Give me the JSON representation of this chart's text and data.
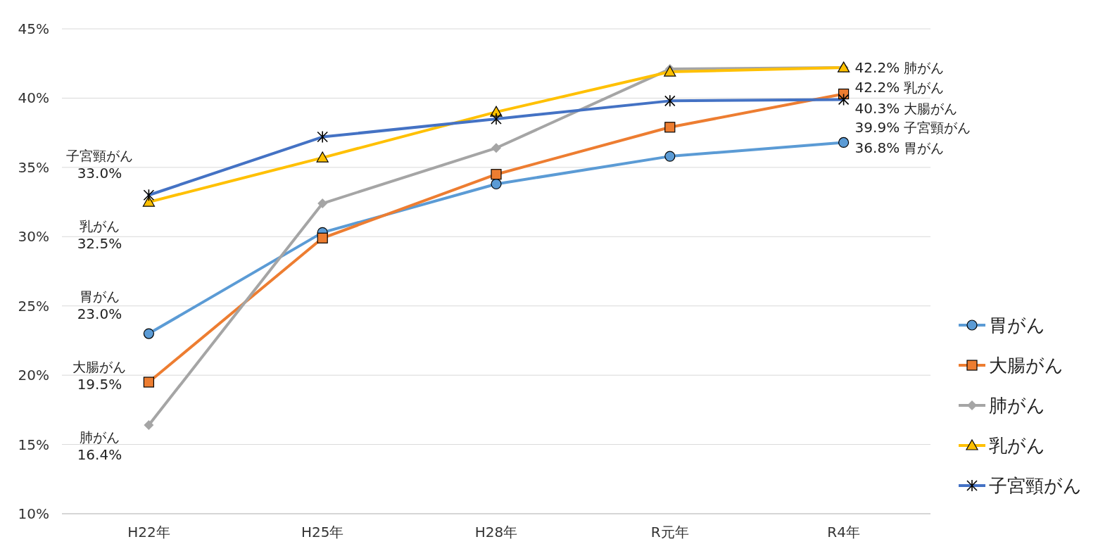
{
  "chart_data": {
    "type": "line",
    "categories": [
      "H22年",
      "H25年",
      "H28年",
      "R元年",
      "R4年"
    ],
    "ylim": [
      10,
      45
    ],
    "yticks": [
      {
        "value": 10,
        "label": "10%"
      },
      {
        "value": 15,
        "label": "15%"
      },
      {
        "value": 20,
        "label": "20%"
      },
      {
        "value": 25,
        "label": "25%"
      },
      {
        "value": 30,
        "label": "30%"
      },
      {
        "value": 35,
        "label": "35%"
      },
      {
        "value": 40,
        "label": "40%"
      },
      {
        "value": 45,
        "label": "45%"
      }
    ],
    "grid": "y",
    "legend": "right",
    "series": [
      {
        "name": "胃がん",
        "color": "#5b9bd5",
        "marker": "circle",
        "values": [
          23.0,
          30.3,
          33.8,
          35.8,
          36.8
        ],
        "value_labels": [
          "23.0%",
          null,
          null,
          null,
          "36.8%"
        ]
      },
      {
        "name": "大腸がん",
        "color": "#ed7d31",
        "marker": "square",
        "values": [
          19.5,
          29.9,
          34.5,
          37.9,
          40.3
        ],
        "value_labels": [
          "19.5%",
          null,
          null,
          null,
          "40.3%"
        ]
      },
      {
        "name": "肺がん",
        "color": "#a5a5a5",
        "marker": "diamond",
        "values": [
          16.4,
          32.4,
          36.4,
          42.1,
          42.2
        ],
        "value_labels": [
          "16.4%",
          null,
          null,
          null,
          "42.2%"
        ]
      },
      {
        "name": "乳がん",
        "color": "#ffc000",
        "marker": "triangle",
        "values": [
          32.5,
          35.7,
          39.0,
          41.9,
          42.2
        ],
        "value_labels": [
          "32.5%",
          null,
          null,
          null,
          "42.2%"
        ]
      },
      {
        "name": "子宮頸がん",
        "color": "#4472c4",
        "marker": "cross",
        "values": [
          33.0,
          37.2,
          38.5,
          39.8,
          39.9
        ],
        "value_labels": [
          "33.0%",
          null,
          null,
          null,
          "39.9%"
        ]
      }
    ]
  }
}
